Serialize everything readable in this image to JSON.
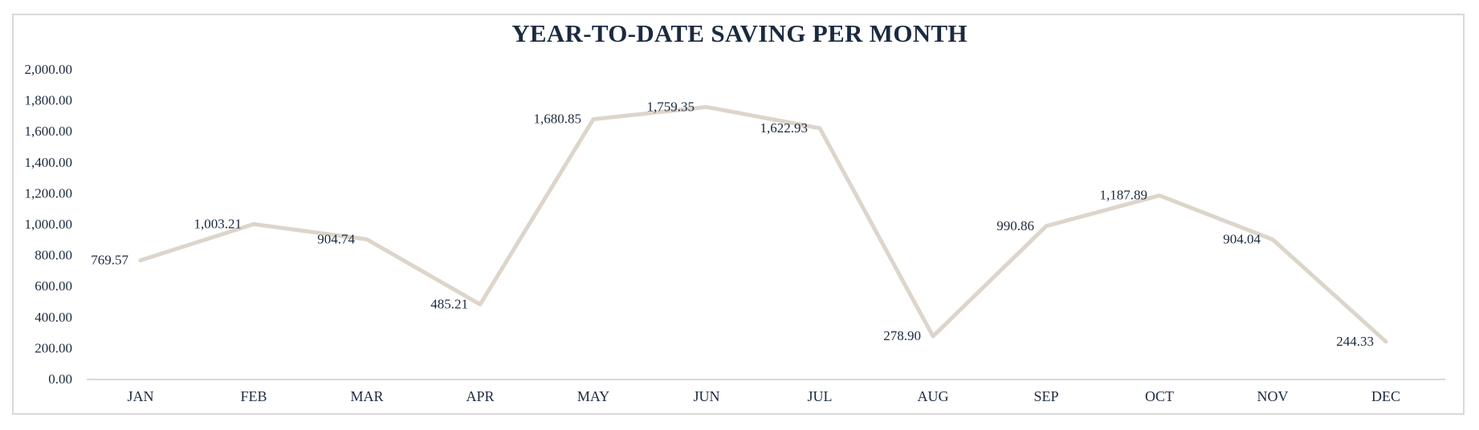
{
  "chart_data": {
    "type": "line",
    "title": "YEAR-TO-DATE SAVING PER MONTH",
    "xlabel": "",
    "ylabel": "",
    "categories": [
      "JAN",
      "FEB",
      "MAR",
      "APR",
      "MAY",
      "JUN",
      "JUL",
      "AUG",
      "SEP",
      "OCT",
      "NOV",
      "DEC"
    ],
    "values": [
      769.57,
      1003.21,
      904.74,
      485.21,
      1680.85,
      1759.35,
      1622.93,
      278.9,
      990.86,
      1187.89,
      904.04,
      244.33
    ],
    "data_labels": [
      "769.57",
      "1,003.21",
      "904.74",
      "485.21",
      "1,680.85",
      "1,759.35",
      "1,622.93",
      "278.90",
      "990.86",
      "1,187.89",
      "904.04",
      "244.33"
    ],
    "ylim": [
      0,
      2000
    ],
    "y_ticks": [
      0,
      200,
      400,
      600,
      800,
      1000,
      1200,
      1400,
      1600,
      1800,
      2000
    ],
    "y_tick_labels": [
      "0.00",
      "200.00",
      "400.00",
      "600.00",
      "800.00",
      "1,000.00",
      "1,200.00",
      "1,400.00",
      "1,600.00",
      "1,800.00",
      "2,000.00"
    ],
    "grid": false,
    "legend": "none",
    "colors": {
      "line": "#ddd5cb",
      "text": "#1b2a3f",
      "axis": "#d9d9d9",
      "border": "#d9d9d9"
    }
  }
}
